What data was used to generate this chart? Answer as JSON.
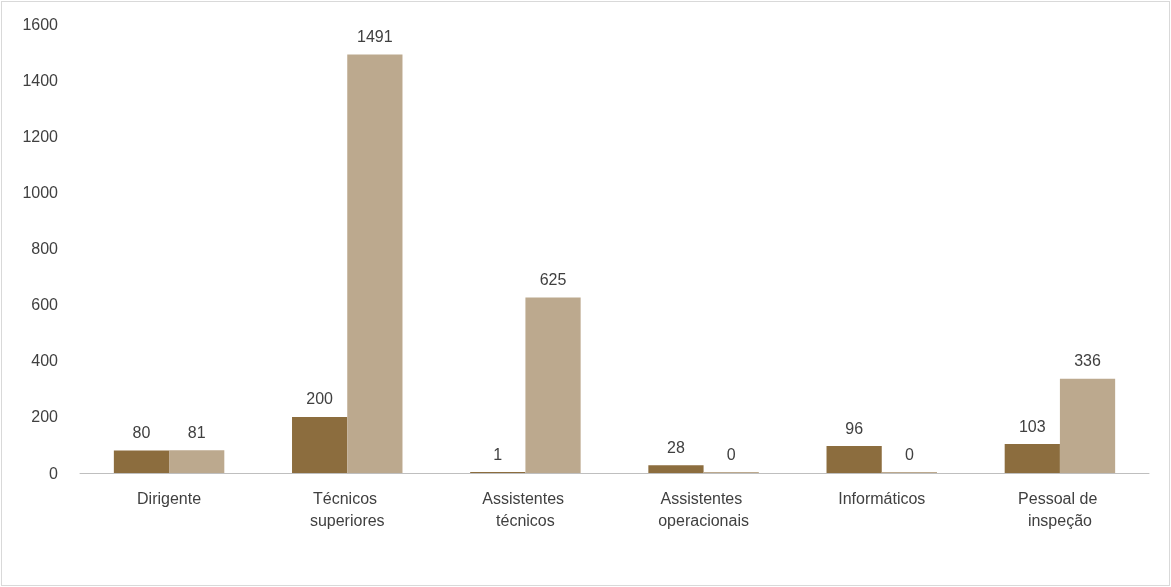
{
  "chart_data": {
    "type": "bar",
    "categories": [
      "Dirigente",
      "Técnicos superiores",
      "Assistentes técnicos",
      "Assistentes operacionais",
      "Informáticos",
      "Pessoal de inspeção"
    ],
    "series": [
      {
        "color": "#8c6d3e",
        "values": [
          80,
          200,
          1,
          28,
          96,
          103
        ]
      },
      {
        "color": "#bca98e",
        "values": [
          81,
          1491,
          625,
          0,
          0,
          336
        ]
      }
    ],
    "ylim": [
      0,
      1600
    ],
    "yticks": [
      0,
      200,
      400,
      600,
      800,
      1000,
      1200,
      1400,
      1600
    ],
    "data_labels": true,
    "grid": false
  }
}
